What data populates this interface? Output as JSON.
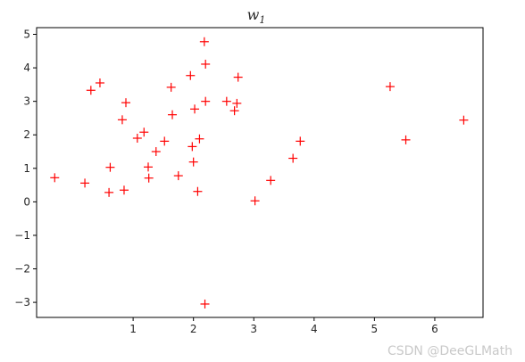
{
  "chart_data": {
    "type": "scatter",
    "title": {
      "base": "w",
      "subscript": "1"
    },
    "xlabel": "",
    "ylabel": "",
    "xlim": [
      -0.6,
      6.8
    ],
    "ylim": [
      -3.45,
      5.2
    ],
    "xticks": [
      1,
      2,
      3,
      4,
      5,
      6
    ],
    "yticks": [
      -3,
      -2,
      -1,
      0,
      1,
      2,
      3,
      4,
      5
    ],
    "marker": "+",
    "color": "#ff0000",
    "grid": false,
    "series": [
      {
        "points": [
          [
            -0.3,
            0.72
          ],
          [
            0.2,
            0.56
          ],
          [
            0.3,
            3.33
          ],
          [
            0.45,
            3.55
          ],
          [
            0.62,
            1.03
          ],
          [
            0.6,
            0.28
          ],
          [
            0.85,
            0.35
          ],
          [
            0.88,
            2.96
          ],
          [
            0.82,
            2.45
          ],
          [
            1.07,
            1.9
          ],
          [
            1.18,
            2.08
          ],
          [
            1.25,
            1.04
          ],
          [
            1.26,
            0.71
          ],
          [
            1.38,
            1.5
          ],
          [
            1.52,
            1.81
          ],
          [
            1.63,
            3.42
          ],
          [
            1.65,
            2.6
          ],
          [
            1.75,
            0.78
          ],
          [
            1.95,
            3.77
          ],
          [
            1.98,
            1.65
          ],
          [
            2.0,
            1.19
          ],
          [
            2.02,
            2.77
          ],
          [
            2.07,
            0.31
          ],
          [
            2.1,
            1.88
          ],
          [
            2.18,
            4.78
          ],
          [
            2.2,
            4.11
          ],
          [
            2.2,
            3.0
          ],
          [
            2.19,
            -3.05
          ],
          [
            2.55,
            3.0
          ],
          [
            2.68,
            2.72
          ],
          [
            2.72,
            2.94
          ],
          [
            2.74,
            3.72
          ],
          [
            3.02,
            0.03
          ],
          [
            3.28,
            0.64
          ],
          [
            3.65,
            1.3
          ],
          [
            3.77,
            1.81
          ],
          [
            5.26,
            3.44
          ],
          [
            5.52,
            1.85
          ],
          [
            6.48,
            2.44
          ]
        ]
      }
    ]
  },
  "watermark": "CSDN @DeeGLMath"
}
